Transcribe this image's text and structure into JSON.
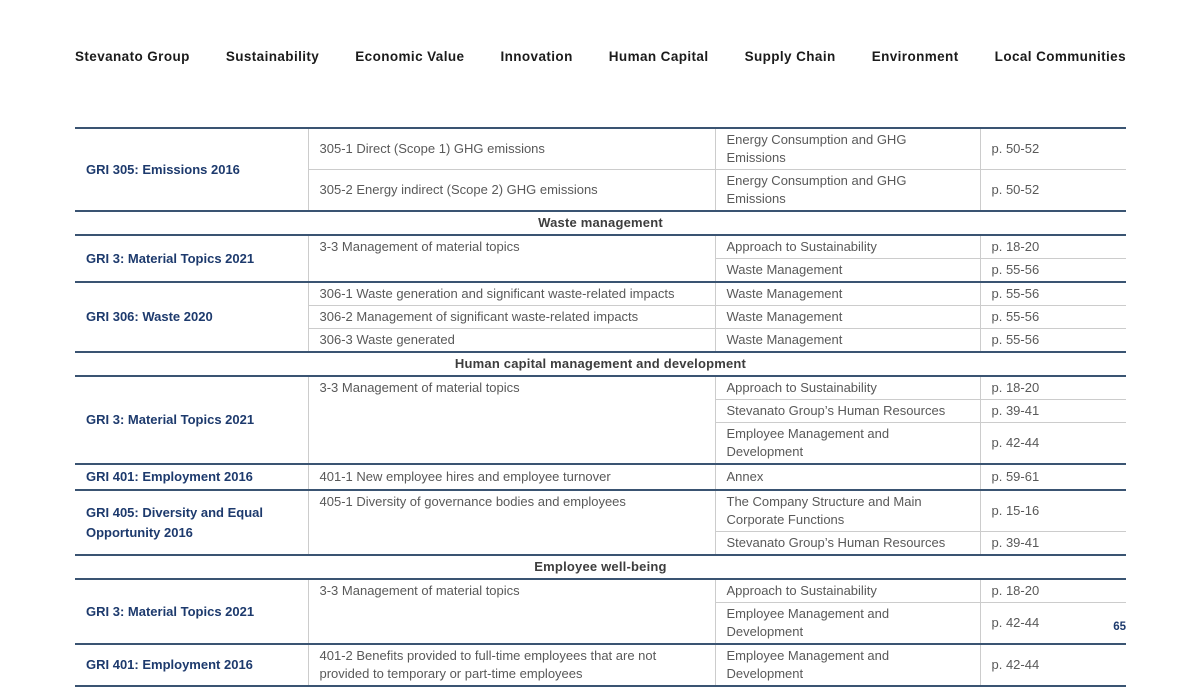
{
  "nav": {
    "items": [
      "Stevanato Group",
      "Sustainability",
      "Economic Value",
      "Innovation",
      "Human Capital",
      "Supply Chain",
      "Environment",
      "Local Communities"
    ]
  },
  "page_number": "65",
  "colors": {
    "accent_navy": "#1d3a6d",
    "thick_border": "#3a5472",
    "thin_border": "#cccccc",
    "body_text": "#595959",
    "section_text": "#3d3d3d",
    "nav_text": "#1b1b1b"
  },
  "table": {
    "sections": [
      {
        "header": null,
        "groups": [
          {
            "standard": "GRI 305: Emissions 2016",
            "disclosures": [
              {
                "text": "305-1 Direct (Scope 1) GHG emissions",
                "locations": [
                  {
                    "location": "Energy Consumption and GHG Emissions",
                    "page": "p. 50-52"
                  }
                ]
              },
              {
                "text": "305-2 Energy indirect (Scope 2) GHG emissions",
                "locations": [
                  {
                    "location": "Energy Consumption and GHG Emissions",
                    "page": "p. 50-52"
                  }
                ]
              }
            ]
          }
        ]
      },
      {
        "header": "Waste management",
        "groups": [
          {
            "standard": "GRI 3: Material Topics 2021",
            "disclosures": [
              {
                "text": "3-3 Management of material topics",
                "locations": [
                  {
                    "location": "Approach to Sustainability",
                    "page": "p. 18-20"
                  },
                  {
                    "location": "Waste Management",
                    "page": "p. 55-56"
                  }
                ]
              }
            ]
          },
          {
            "standard": "GRI 306: Waste 2020",
            "disclosures": [
              {
                "text": "306-1 Waste generation and significant waste-related impacts",
                "locations": [
                  {
                    "location": "Waste Management",
                    "page": "p. 55-56"
                  }
                ]
              },
              {
                "text": "306-2 Management of significant waste-related impacts",
                "locations": [
                  {
                    "location": "Waste Management",
                    "page": "p. 55-56"
                  }
                ]
              },
              {
                "text": "306-3 Waste generated",
                "locations": [
                  {
                    "location": "Waste Management",
                    "page": "p. 55-56"
                  }
                ]
              }
            ]
          }
        ]
      },
      {
        "header": "Human capital management and development",
        "groups": [
          {
            "standard": "GRI 3: Material Topics 2021",
            "disclosures": [
              {
                "text": "3-3 Management of material topics",
                "locations": [
                  {
                    "location": "Approach to Sustainability",
                    "page": "p. 18-20"
                  },
                  {
                    "location": "Stevanato Group’s Human Resources",
                    "page": "p. 39-41"
                  },
                  {
                    "location": "Employee Management and Development",
                    "page": "p. 42-44"
                  }
                ]
              }
            ]
          },
          {
            "standard": "GRI 401: Employment 2016",
            "disclosures": [
              {
                "text": "401-1 New employee hires and employee turnover",
                "locations": [
                  {
                    "location": "Annex",
                    "page": "p. 59-61"
                  }
                ]
              }
            ]
          },
          {
            "standard": "GRI 405: Diversity and Equal Opportunity 2016",
            "disclosures": [
              {
                "text": "405-1 Diversity of governance bodies and employees",
                "locations": [
                  {
                    "location": "The Company Structure and Main Corporate Functions",
                    "page": "p. 15-16"
                  },
                  {
                    "location": "Stevanato Group’s Human Resources",
                    "page": "p. 39-41"
                  }
                ]
              }
            ]
          }
        ]
      },
      {
        "header": "Employee well-being",
        "groups": [
          {
            "standard": "GRI 3: Material Topics 2021",
            "disclosures": [
              {
                "text": "3-3 Management of material topics",
                "locations": [
                  {
                    "location": "Approach to Sustainability",
                    "page": "p. 18-20"
                  },
                  {
                    "location": "Employee Management and Development",
                    "page": "p. 42-44"
                  }
                ]
              }
            ]
          },
          {
            "standard": "GRI 401: Employment 2016",
            "disclosures": [
              {
                "text": "401-2 Benefits provided to full-time employees that are not provided to temporary or part-time employees",
                "locations": [
                  {
                    "location": "Employee Management and Development",
                    "page": "p. 42-44"
                  }
                ]
              }
            ]
          }
        ]
      }
    ]
  }
}
